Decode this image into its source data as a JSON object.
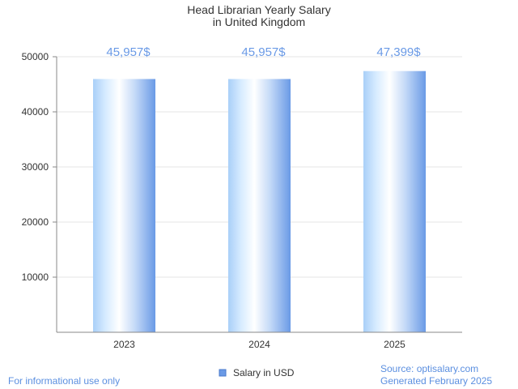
{
  "chart_data": {
    "type": "bar",
    "title_lines": [
      "Head Librarian Yearly Salary",
      "in United Kingdom"
    ],
    "categories": [
      "2023",
      "2024",
      "2025"
    ],
    "values": [
      45957,
      45957,
      47399
    ],
    "value_labels": [
      "45,957$",
      "45,957$",
      "47,399$"
    ],
    "ylim": [
      0,
      50000
    ],
    "yticks": [
      10000,
      20000,
      30000,
      40000,
      50000
    ],
    "ytick_labels": [
      "10000",
      "20000",
      "30000",
      "40000",
      "50000"
    ],
    "grid": true,
    "legend": {
      "label": "Salary in USD",
      "placement": "bottom-center"
    },
    "colors": {
      "bar_edge": "#6a9ae6",
      "bar_center": "#ffffff",
      "bar_light": "#bfdcff",
      "label": "#6a9ae6",
      "grid": "#e6e6e6",
      "axis": "#888888"
    }
  },
  "footer": {
    "left": "For informational use only",
    "source": "Source: optisalary.com",
    "generated": "Generated February 2025"
  }
}
